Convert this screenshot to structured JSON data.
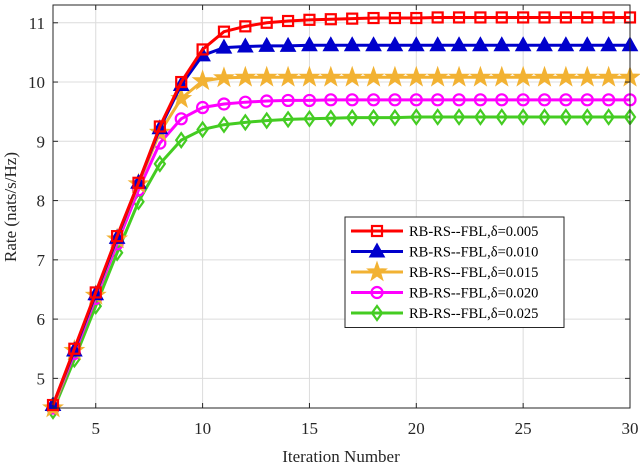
{
  "chart_data": {
    "type": "line",
    "xlabel": "Iteration Number",
    "ylabel": "Rate (nats/s/Hz)",
    "xlim": [
      3,
      30
    ],
    "ylim": [
      4.5,
      11.3
    ],
    "xticks": [
      5,
      10,
      15,
      20,
      25,
      30
    ],
    "yticks": [
      5,
      6,
      7,
      8,
      9,
      10,
      11
    ],
    "grid": true,
    "legend_position": "center-right",
    "x": [
      3,
      4,
      5,
      6,
      7,
      8,
      9,
      10,
      11,
      12,
      13,
      14,
      15,
      16,
      17,
      18,
      19,
      20,
      21,
      22,
      23,
      24,
      25,
      26,
      27,
      28,
      29,
      30
    ],
    "series": [
      {
        "name": "RB-RS--FBL,δ=0.005",
        "color": "#ff0000",
        "marker": "square",
        "values": [
          4.55,
          5.5,
          6.45,
          7.4,
          8.3,
          9.25,
          10.0,
          10.55,
          10.85,
          10.94,
          11.0,
          11.03,
          11.05,
          11.06,
          11.07,
          11.08,
          11.08,
          11.08,
          11.09,
          11.09,
          11.09,
          11.09,
          11.09,
          11.09,
          11.09,
          11.09,
          11.09,
          11.09
        ]
      },
      {
        "name": "RB-RS--FBL,δ=0.010",
        "color": "#0000cc",
        "marker": "triangle",
        "values": [
          4.55,
          5.47,
          6.42,
          7.37,
          8.3,
          9.22,
          9.95,
          10.45,
          10.58,
          10.6,
          10.61,
          10.61,
          10.62,
          10.62,
          10.62,
          10.62,
          10.62,
          10.62,
          10.62,
          10.62,
          10.62,
          10.62,
          10.62,
          10.62,
          10.62,
          10.62,
          10.62,
          10.62
        ]
      },
      {
        "name": "RB-RS--FBL,δ=0.015",
        "color": "#f2b233",
        "marker": "star",
        "values": [
          4.5,
          5.47,
          6.4,
          7.35,
          8.28,
          9.15,
          9.72,
          10.02,
          10.07,
          10.08,
          10.08,
          10.08,
          10.08,
          10.08,
          10.08,
          10.08,
          10.08,
          10.08,
          10.08,
          10.08,
          10.08,
          10.08,
          10.08,
          10.08,
          10.08,
          10.08,
          10.08,
          10.08
        ]
      },
      {
        "name": "RB-RS--FBL,δ=0.020",
        "color": "#ff00ff",
        "marker": "circle",
        "values": [
          4.5,
          5.42,
          6.35,
          7.27,
          8.18,
          8.97,
          9.38,
          9.57,
          9.63,
          9.66,
          9.68,
          9.69,
          9.69,
          9.7,
          9.7,
          9.7,
          9.7,
          9.7,
          9.7,
          9.7,
          9.7,
          9.7,
          9.7,
          9.7,
          9.7,
          9.7,
          9.7,
          9.7
        ]
      },
      {
        "name": "RB-RS--FBL,δ=0.025",
        "color": "#44cc22",
        "marker": "diamond",
        "values": [
          4.45,
          5.32,
          6.22,
          7.12,
          7.98,
          8.62,
          9.02,
          9.2,
          9.28,
          9.32,
          9.35,
          9.37,
          9.38,
          9.39,
          9.4,
          9.4,
          9.4,
          9.41,
          9.41,
          9.41,
          9.41,
          9.41,
          9.41,
          9.41,
          9.41,
          9.41,
          9.41,
          9.41
        ]
      }
    ]
  }
}
